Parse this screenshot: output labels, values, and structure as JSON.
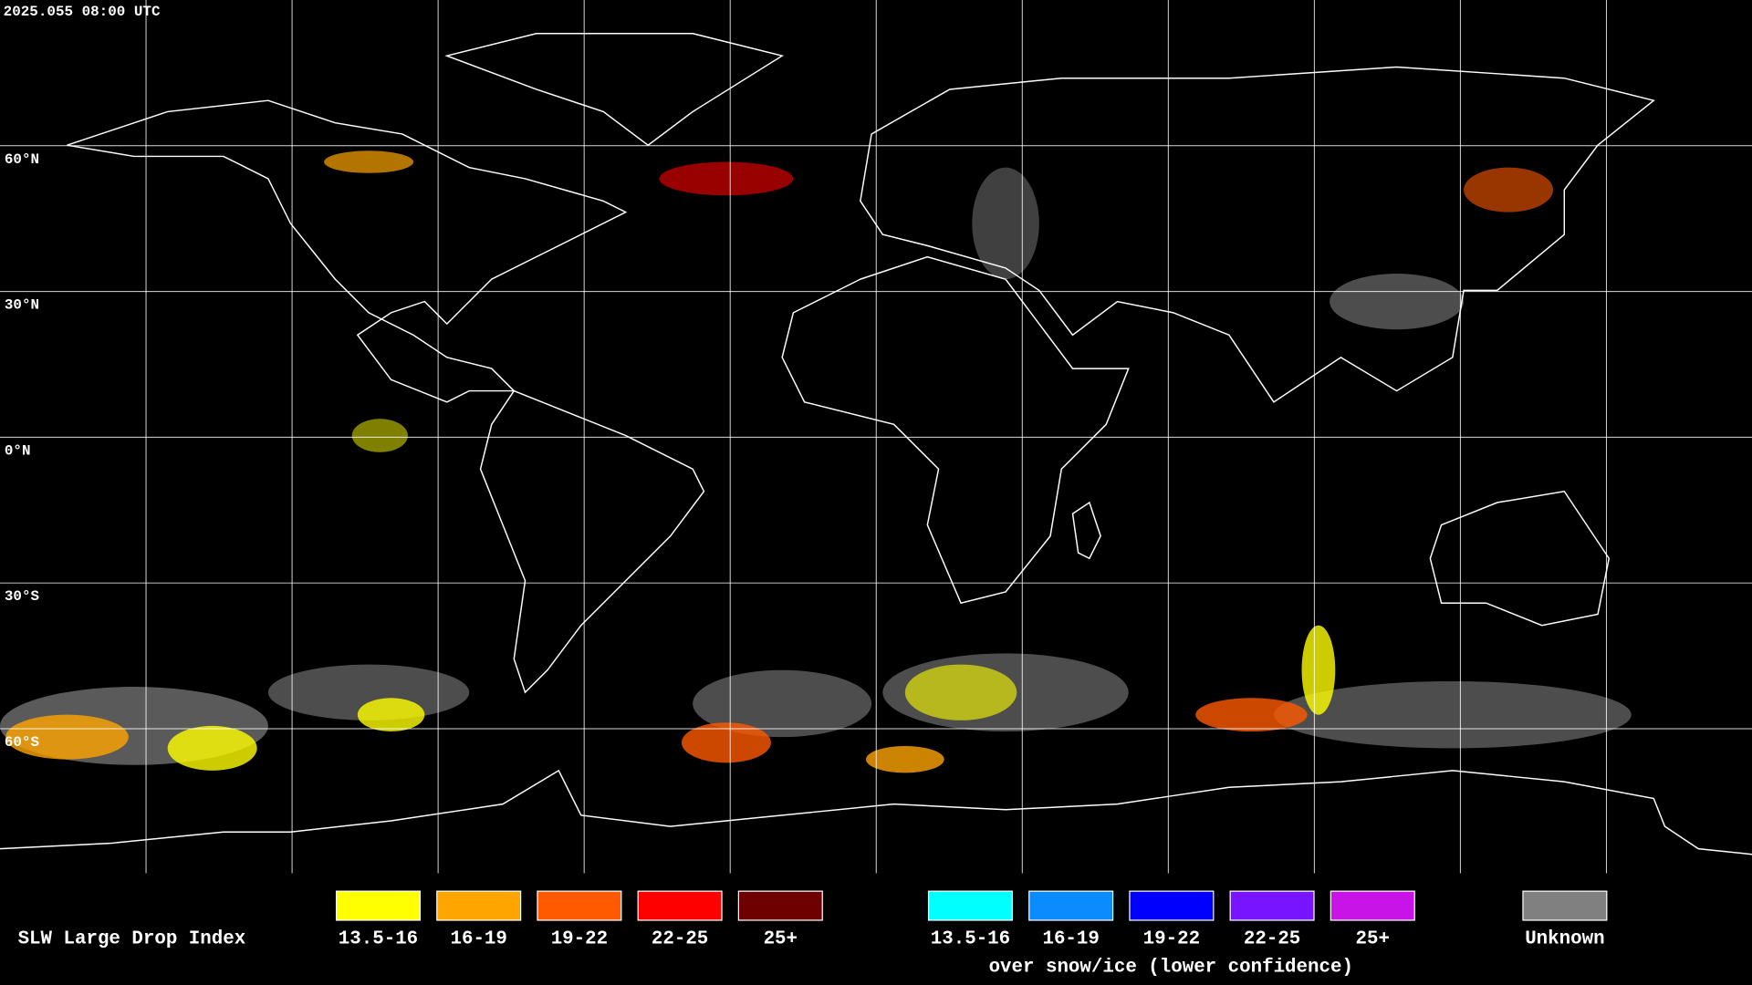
{
  "timestamp": "2025.055 08:00 UTC",
  "latitude_labels": [
    "60°N",
    "30°N",
    "0°N",
    "30°S",
    "60°S"
  ],
  "legend": {
    "title": "SLW Large Drop Index",
    "items": [
      {
        "label": "13.5-16",
        "color": "#ffff00"
      },
      {
        "label": "16-19",
        "color": "#ffa500"
      },
      {
        "label": "19-22",
        "color": "#ff5a00"
      },
      {
        "label": "22-25",
        "color": "#ff0000"
      },
      {
        "label": "25+",
        "color": "#6e0000"
      }
    ],
    "snow_items": [
      {
        "label": "13.5-16",
        "color": "#00ffff"
      },
      {
        "label": "16-19",
        "color": "#0a8cff"
      },
      {
        "label": "19-22",
        "color": "#0000ff"
      },
      {
        "label": "22-25",
        "color": "#7814ff"
      },
      {
        "label": "25+",
        "color": "#c814e6"
      }
    ],
    "snow_caption": "over snow/ice (lower confidence)",
    "unknown": {
      "label": "Unknown",
      "color": "#808080"
    }
  }
}
